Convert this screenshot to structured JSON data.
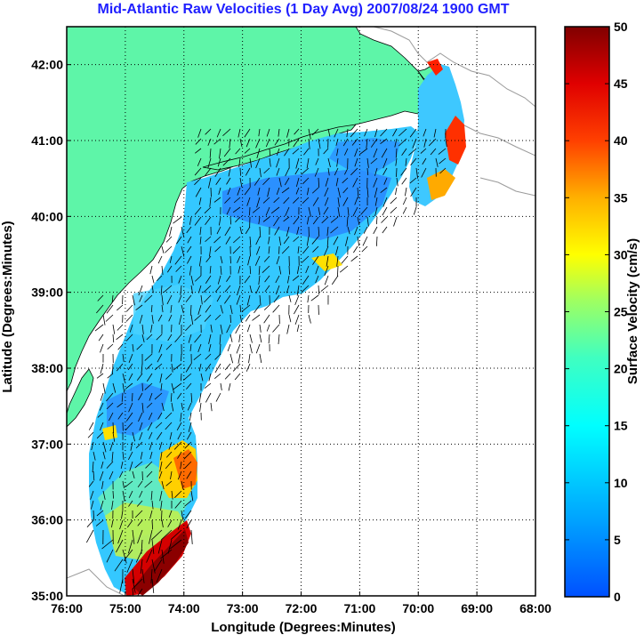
{
  "title": "Mid-Atlantic Raw Velocities (1 Day Avg) 2007/08/24 1900 GMT",
  "map": {
    "xlabel": "Longitude (Degrees:Minutes)",
    "ylabel": "Latitude (Degrees:Minutes)",
    "lon_range": [
      -76,
      -68
    ],
    "lat_range": [
      35,
      42.5
    ],
    "lon_ticks": [
      {
        "value": -76,
        "label": "76:00"
      },
      {
        "value": -75,
        "label": "75:00"
      },
      {
        "value": -74,
        "label": "74:00"
      },
      {
        "value": -73,
        "label": "73:00"
      },
      {
        "value": -72,
        "label": "72:00"
      },
      {
        "value": -71,
        "label": "71:00"
      },
      {
        "value": -70,
        "label": "70:00"
      },
      {
        "value": -69,
        "label": "69:00"
      },
      {
        "value": -68,
        "label": "68:00"
      }
    ],
    "lat_ticks": [
      {
        "value": 35,
        "label": "35:00"
      },
      {
        "value": 36,
        "label": "36:00"
      },
      {
        "value": 37,
        "label": "37:00"
      },
      {
        "value": 38,
        "label": "38:00"
      },
      {
        "value": 39,
        "label": "39:00"
      },
      {
        "value": 40,
        "label": "40:00"
      },
      {
        "value": 41,
        "label": "41:00"
      },
      {
        "value": 42,
        "label": "42:00"
      }
    ],
    "grid": "dotted",
    "land_color": "#5ef5a8"
  },
  "colorbar": {
    "label": "Surface Velocity (cm/s)",
    "range": [
      0,
      50
    ],
    "ticks": [
      {
        "value": 0,
        "label": "0"
      },
      {
        "value": 5,
        "label": "5"
      },
      {
        "value": 10,
        "label": "10"
      },
      {
        "value": 15,
        "label": "15"
      },
      {
        "value": 20,
        "label": "20"
      },
      {
        "value": 25,
        "label": "25"
      },
      {
        "value": 30,
        "label": "30"
      },
      {
        "value": 35,
        "label": "35"
      },
      {
        "value": 40,
        "label": "40"
      },
      {
        "value": 45,
        "label": "45"
      },
      {
        "value": 50,
        "label": "50"
      }
    ],
    "colormap": "jet"
  }
}
